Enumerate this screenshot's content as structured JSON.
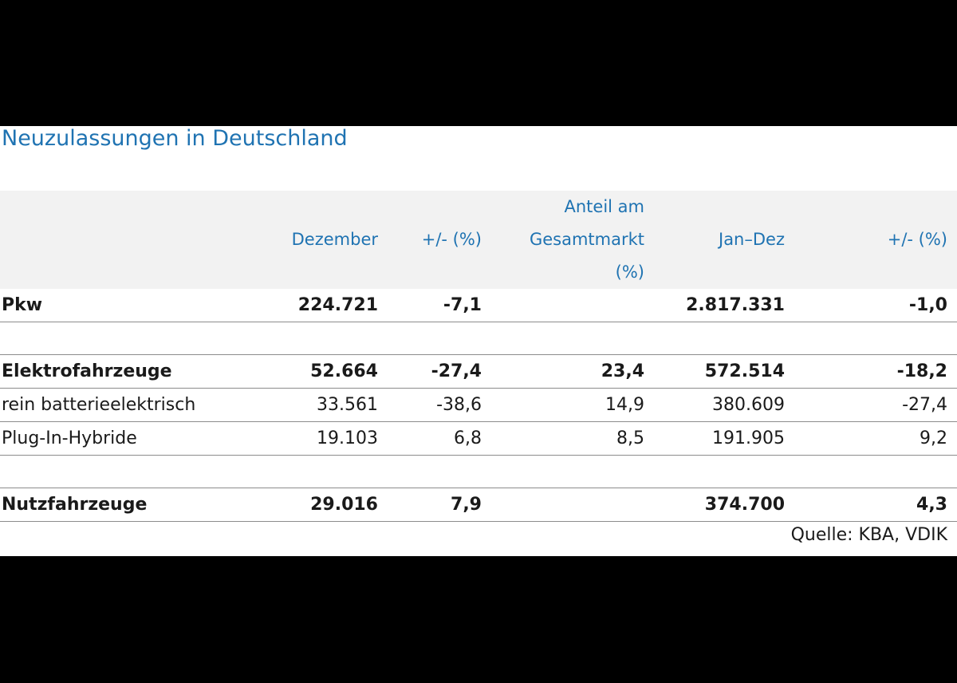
{
  "title": "Neuzulassungen in Deutschland",
  "header": {
    "col1": "Dezember",
    "col2": "+/-  (%)",
    "col3_line1": "Anteil am",
    "col3_line2": "Gesamtmarkt",
    "col3_line3": "(%)",
    "col4": "Jan–Dez",
    "col5": "+/-  (%)"
  },
  "rows": [
    {
      "label": "Pkw",
      "dezember": "224.721",
      "change_dez": "-7,1",
      "anteil": "",
      "jan_dez": "2.817.331",
      "change_jan_dez": "-1,0"
    },
    {
      "label": "",
      "dezember": "",
      "change_dez": "",
      "anteil": "",
      "jan_dez": "",
      "change_jan_dez": ""
    },
    {
      "label": "Elektrofahrzeuge",
      "dezember": "52.664",
      "change_dez": "-27,4",
      "anteil": "23,4",
      "jan_dez": "572.514",
      "change_jan_dez": "-18,2"
    },
    {
      "label": "rein batterieelektrisch",
      "dezember": "33.561",
      "change_dez": "-38,6",
      "anteil": "14,9",
      "jan_dez": "380.609",
      "change_jan_dez": "-27,4"
    },
    {
      "label": "Plug-In-Hybride",
      "dezember": "19.103",
      "change_dez": "6,8",
      "anteil": "8,5",
      "jan_dez": "191.905",
      "change_jan_dez": "9,2"
    },
    {
      "label": "",
      "dezember": "",
      "change_dez": "",
      "anteil": "",
      "jan_dez": "",
      "change_jan_dez": ""
    },
    {
      "label": "Nutzfahrzeuge",
      "dezember": "29.016",
      "change_dez": "7,9",
      "anteil": "",
      "jan_dez": "374.700",
      "change_jan_dez": "4,3"
    }
  ],
  "source": "Quelle: KBA, VDIK"
}
